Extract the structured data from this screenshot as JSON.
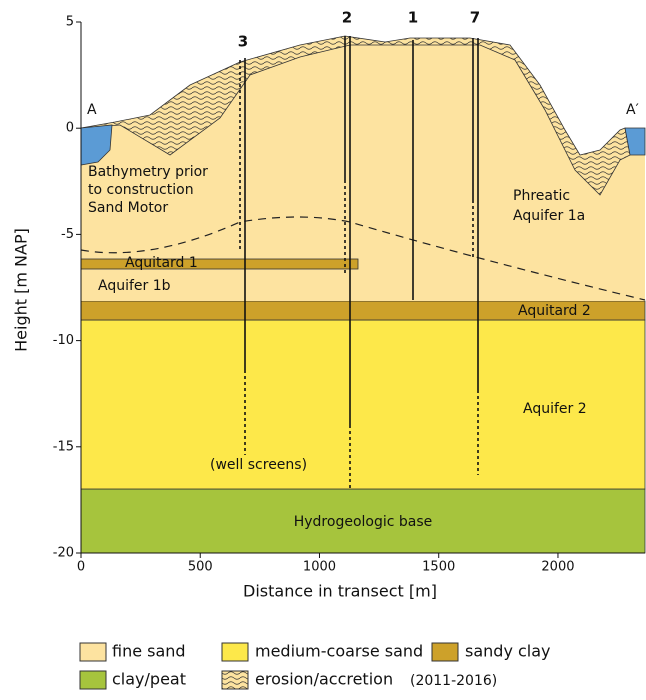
{
  "axes": {
    "x_label": "Distance in transect [m]",
    "y_label": "Height [m NAP]",
    "xlim": [
      0,
      2365
    ],
    "ylim": [
      -20,
      5
    ],
    "xticks": [
      0,
      500,
      1000,
      1500,
      2000
    ],
    "yticks": [
      5,
      0,
      -5,
      -10,
      -15,
      -20
    ]
  },
  "wells": [
    {
      "label": "3"
    },
    {
      "label": "2"
    },
    {
      "label": "1"
    },
    {
      "label": "7"
    }
  ],
  "labels": {
    "a": "A",
    "a_prime": "A′",
    "bathymetry": [
      "Bathymetry prior",
      "to construction",
      "Sand Motor"
    ],
    "phreatic": [
      "Phreatic",
      "Aquifer 1a"
    ],
    "aquitard1": "Aquitard 1",
    "aquifer1b": "Aquifer 1b",
    "aquitard2": "Aquitard 2",
    "aquifer2": "Aquifer 2",
    "well_screens": "(well screens)",
    "base": "Hydrogeologic base"
  },
  "legend": [
    {
      "label": "fine sand"
    },
    {
      "label": "medium-coarse sand"
    },
    {
      "label": "sandy clay"
    },
    {
      "label": "clay/peat"
    },
    {
      "label": "erosion/accretion",
      "note": "(2011-2016)"
    }
  ]
}
